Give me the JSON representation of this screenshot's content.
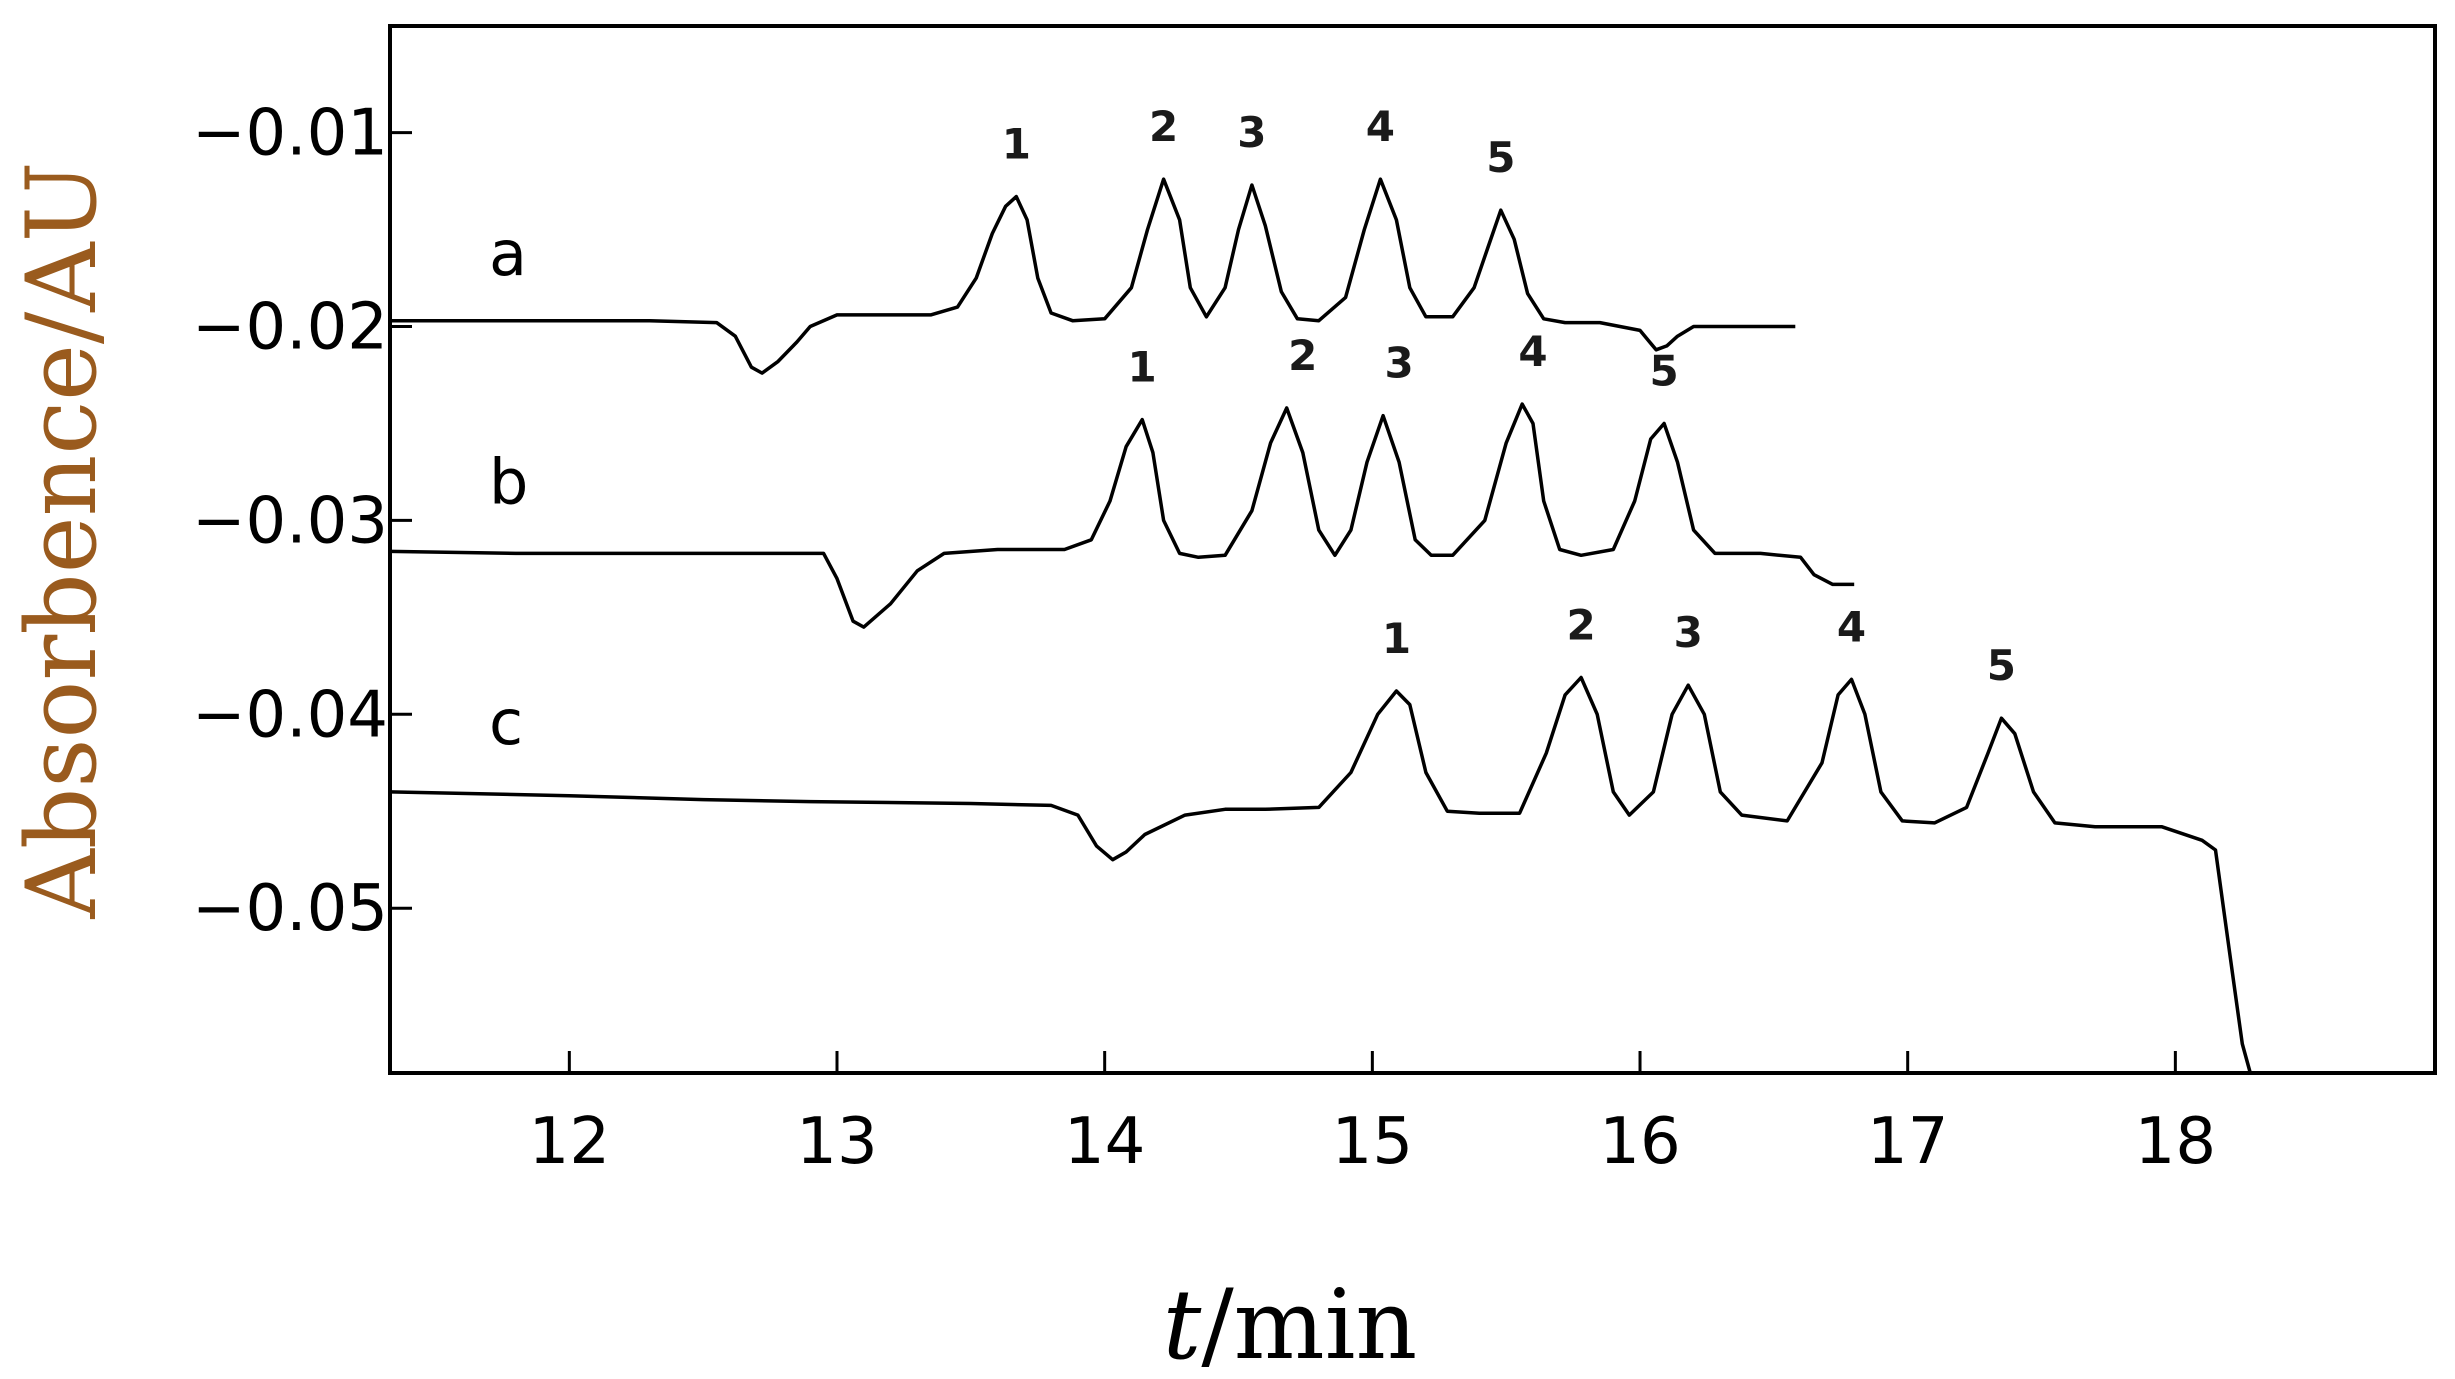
{
  "chart_data": {
    "type": "line",
    "title": "",
    "xlabel": {
      "italic": "t",
      "rest": "/min"
    },
    "ylabel": "Absorbence/AU",
    "ylabel_color": "#9a5b1e",
    "line_color": "#000000",
    "xlim": [
      11.33,
      18.97
    ],
    "ylim": [
      -0.0585,
      -0.0045
    ],
    "x_ticks": [
      12,
      13,
      14,
      15,
      16,
      17,
      18
    ],
    "x_tick_labels": [
      "12",
      "13",
      "14",
      "15",
      "16",
      "17",
      "18"
    ],
    "y_ticks": [
      -0.01,
      -0.02,
      -0.03,
      -0.04,
      -0.05
    ],
    "y_tick_labels": [
      "−0.01",
      "−0.02",
      "−0.03",
      "−0.04",
      "−0.05"
    ],
    "grid": false,
    "series": [
      {
        "name": "a",
        "label_pos": [
          11.7,
          -0.0163
        ],
        "x": [
          11.33,
          11.9,
          12.3,
          12.55,
          12.62,
          12.68,
          12.72,
          12.78,
          12.85,
          12.9,
          13.0,
          13.2,
          13.35,
          13.45,
          13.52,
          13.58,
          13.63,
          13.67,
          13.71,
          13.75,
          13.8,
          13.88,
          14.0,
          14.1,
          14.16,
          14.22,
          14.28,
          14.32,
          14.38,
          14.45,
          14.5,
          14.55,
          14.6,
          14.66,
          14.72,
          14.8,
          14.9,
          14.97,
          15.03,
          15.09,
          15.14,
          15.2,
          15.3,
          15.38,
          15.43,
          15.48,
          15.53,
          15.58,
          15.64,
          15.72,
          15.85,
          16.0,
          16.06,
          16.1,
          16.14,
          16.2,
          16.3,
          16.58
        ],
        "y": [
          -0.0197,
          -0.0197,
          -0.0197,
          -0.0198,
          -0.0205,
          -0.0221,
          -0.0224,
          -0.0218,
          -0.0208,
          -0.02,
          -0.0194,
          -0.0194,
          -0.0194,
          -0.019,
          -0.0175,
          -0.0152,
          -0.0138,
          -0.0133,
          -0.0145,
          -0.0175,
          -0.0193,
          -0.0197,
          -0.0196,
          -0.018,
          -0.015,
          -0.0124,
          -0.0145,
          -0.018,
          -0.0195,
          -0.018,
          -0.015,
          -0.0127,
          -0.0148,
          -0.0182,
          -0.0196,
          -0.0197,
          -0.0185,
          -0.015,
          -0.0124,
          -0.0145,
          -0.018,
          -0.0195,
          -0.0195,
          -0.018,
          -0.016,
          -0.014,
          -0.0155,
          -0.0183,
          -0.0196,
          -0.0198,
          -0.0198,
          -0.0202,
          -0.0212,
          -0.021,
          -0.0205,
          -0.02,
          -0.02,
          -0.02
        ],
        "peaks": [
          {
            "label": "1",
            "x": 13.67,
            "y": -0.0133
          },
          {
            "label": "2",
            "x": 14.22,
            "y": -0.0124
          },
          {
            "label": "3",
            "x": 14.55,
            "y": -0.0127
          },
          {
            "label": "4",
            "x": 15.03,
            "y": -0.0124
          },
          {
            "label": "5",
            "x": 15.48,
            "y": -0.014
          }
        ]
      },
      {
        "name": "b",
        "label_pos": [
          11.7,
          -0.0281
        ],
        "x": [
          11.33,
          11.8,
          12.4,
          12.95,
          13.0,
          13.06,
          13.1,
          13.2,
          13.3,
          13.4,
          13.6,
          13.85,
          13.95,
          14.02,
          14.08,
          14.14,
          14.18,
          14.22,
          14.28,
          14.35,
          14.45,
          14.55,
          14.62,
          14.68,
          14.74,
          14.8,
          14.86,
          14.92,
          14.98,
          15.04,
          15.1,
          15.16,
          15.22,
          15.3,
          15.42,
          15.5,
          15.56,
          15.6,
          15.64,
          15.7,
          15.78,
          15.9,
          15.98,
          16.04,
          16.09,
          16.14,
          16.2,
          16.28,
          16.45,
          16.6,
          16.65,
          16.72,
          16.8
        ],
        "y": [
          -0.0316,
          -0.0317,
          -0.0317,
          -0.0317,
          -0.033,
          -0.0352,
          -0.0355,
          -0.0343,
          -0.0326,
          -0.0317,
          -0.0315,
          -0.0315,
          -0.031,
          -0.029,
          -0.0262,
          -0.0248,
          -0.0265,
          -0.03,
          -0.0317,
          -0.0319,
          -0.0318,
          -0.0295,
          -0.026,
          -0.0242,
          -0.0265,
          -0.0305,
          -0.0318,
          -0.0305,
          -0.027,
          -0.0246,
          -0.027,
          -0.031,
          -0.0318,
          -0.0318,
          -0.03,
          -0.026,
          -0.024,
          -0.025,
          -0.029,
          -0.0315,
          -0.0318,
          -0.0315,
          -0.029,
          -0.0258,
          -0.025,
          -0.027,
          -0.0305,
          -0.0317,
          -0.0317,
          -0.0319,
          -0.0328,
          -0.0333,
          -0.0333
        ],
        "peaks": [
          {
            "label": "1",
            "x": 14.14,
            "y": -0.0248
          },
          {
            "label": "2",
            "x": 14.74,
            "y": -0.0242
          },
          {
            "label": "3",
            "x": 15.1,
            "y": -0.0246
          },
          {
            "label": "4",
            "x": 15.6,
            "y": -0.024
          },
          {
            "label": "5",
            "x": 16.09,
            "y": -0.025
          }
        ]
      },
      {
        "name": "c",
        "label_pos": [
          11.7,
          -0.0405
        ],
        "x": [
          11.33,
          12.0,
          12.5,
          12.9,
          13.5,
          13.8,
          13.9,
          13.97,
          14.03,
          14.08,
          14.15,
          14.3,
          14.45,
          14.6,
          14.8,
          14.92,
          15.02,
          15.09,
          15.14,
          15.2,
          15.28,
          15.4,
          15.55,
          15.65,
          15.72,
          15.78,
          15.84,
          15.9,
          15.96,
          16.05,
          16.12,
          16.18,
          16.24,
          16.3,
          16.38,
          16.55,
          16.68,
          16.74,
          16.79,
          16.84,
          16.9,
          16.98,
          17.1,
          17.22,
          17.3,
          17.35,
          17.4,
          17.47,
          17.55,
          17.7,
          17.95,
          18.1,
          18.15,
          18.18,
          18.22,
          18.25,
          18.28
        ],
        "y": [
          -0.044,
          -0.0442,
          -0.0444,
          -0.0445,
          -0.0446,
          -0.0447,
          -0.0452,
          -0.0468,
          -0.0475,
          -0.0471,
          -0.0462,
          -0.0452,
          -0.0449,
          -0.0449,
          -0.0448,
          -0.043,
          -0.04,
          -0.0388,
          -0.0395,
          -0.043,
          -0.045,
          -0.0451,
          -0.0451,
          -0.042,
          -0.039,
          -0.0381,
          -0.04,
          -0.044,
          -0.0452,
          -0.044,
          -0.04,
          -0.0385,
          -0.04,
          -0.044,
          -0.0452,
          -0.0455,
          -0.0425,
          -0.039,
          -0.0382,
          -0.04,
          -0.044,
          -0.0455,
          -0.0456,
          -0.0448,
          -0.042,
          -0.0402,
          -0.041,
          -0.044,
          -0.0456,
          -0.0458,
          -0.0458,
          -0.0465,
          -0.047,
          -0.05,
          -0.054,
          -0.057,
          -0.0585
        ],
        "peaks": [
          {
            "label": "1",
            "x": 15.09,
            "y": -0.0388
          },
          {
            "label": "2",
            "x": 15.78,
            "y": -0.0381
          },
          {
            "label": "3",
            "x": 16.18,
            "y": -0.0385
          },
          {
            "label": "4",
            "x": 16.79,
            "y": -0.0382
          },
          {
            "label": "5",
            "x": 17.35,
            "y": -0.0402
          }
        ]
      }
    ]
  }
}
